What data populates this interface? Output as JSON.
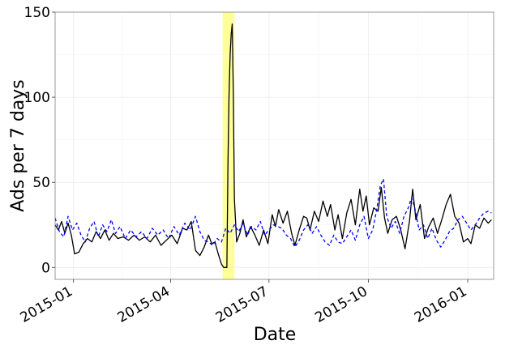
{
  "chart_data": {
    "type": "line",
    "xlabel": "Date",
    "ylabel": "Ads per 7 days",
    "x_range": [
      "2014-12-15",
      "2016-01-25"
    ],
    "ylim": [
      -7,
      150
    ],
    "x_ticks": [
      "2015-01",
      "2015-04",
      "2015-07",
      "2015-10",
      "2016-01"
    ],
    "x_tick_dates": [
      "2015-01-01",
      "2015-04-01",
      "2015-07-01",
      "2015-10-01",
      "2016-01-01"
    ],
    "y_ticks": [
      "0",
      "50",
      "100",
      "150"
    ],
    "y_tick_values": [
      0,
      50,
      100,
      150
    ],
    "grid": true,
    "highlight": {
      "start": "2015-05-19",
      "end": "2015-05-30",
      "color": "#ffff99"
    },
    "series": [
      {
        "style": "solid",
        "color": "#000000",
        "points": [
          [
            "2014-12-15",
            25
          ],
          [
            "2014-12-18",
            22
          ],
          [
            "2014-12-21",
            27
          ],
          [
            "2014-12-24",
            20
          ],
          [
            "2014-12-27",
            26
          ],
          [
            "2014-12-30",
            19
          ],
          [
            "2015-01-02",
            8
          ],
          [
            "2015-01-06",
            9
          ],
          [
            "2015-01-10",
            14
          ],
          [
            "2015-01-14",
            17
          ],
          [
            "2015-01-18",
            15
          ],
          [
            "2015-01-22",
            21
          ],
          [
            "2015-01-26",
            17
          ],
          [
            "2015-01-30",
            22
          ],
          [
            "2015-02-03",
            16
          ],
          [
            "2015-02-07",
            20
          ],
          [
            "2015-02-11",
            17
          ],
          [
            "2015-02-16",
            18
          ],
          [
            "2015-02-21",
            16
          ],
          [
            "2015-02-26",
            19
          ],
          [
            "2015-03-03",
            16
          ],
          [
            "2015-03-08",
            18
          ],
          [
            "2015-03-13",
            15
          ],
          [
            "2015-03-18",
            19
          ],
          [
            "2015-03-23",
            13
          ],
          [
            "2015-03-28",
            16
          ],
          [
            "2015-04-02",
            19
          ],
          [
            "2015-04-07",
            14
          ],
          [
            "2015-04-12",
            23
          ],
          [
            "2015-04-16",
            22
          ],
          [
            "2015-04-20",
            27
          ],
          [
            "2015-04-24",
            10
          ],
          [
            "2015-04-28",
            7
          ],
          [
            "2015-05-02",
            12
          ],
          [
            "2015-05-06",
            19
          ],
          [
            "2015-05-09",
            14
          ],
          [
            "2015-05-12",
            15
          ],
          [
            "2015-05-15",
            8
          ],
          [
            "2015-05-18",
            2
          ],
          [
            "2015-05-20",
            0
          ],
          [
            "2015-05-23",
            0
          ],
          [
            "2015-05-24",
            60
          ],
          [
            "2015-05-25",
            100
          ],
          [
            "2015-05-26",
            125
          ],
          [
            "2015-05-27",
            137
          ],
          [
            "2015-05-28",
            143
          ],
          [
            "2015-05-29",
            100
          ],
          [
            "2015-05-30",
            40
          ],
          [
            "2015-06-01",
            15
          ],
          [
            "2015-06-04",
            20
          ],
          [
            "2015-06-07",
            28
          ],
          [
            "2015-06-10",
            18
          ],
          [
            "2015-06-14",
            24
          ],
          [
            "2015-06-18",
            19
          ],
          [
            "2015-06-22",
            13
          ],
          [
            "2015-06-26",
            22
          ],
          [
            "2015-06-30",
            14
          ],
          [
            "2015-07-04",
            31
          ],
          [
            "2015-07-07",
            24
          ],
          [
            "2015-07-10",
            34
          ],
          [
            "2015-07-14",
            26
          ],
          [
            "2015-07-18",
            33
          ],
          [
            "2015-07-22",
            20
          ],
          [
            "2015-07-25",
            13
          ],
          [
            "2015-07-29",
            22
          ],
          [
            "2015-08-02",
            30
          ],
          [
            "2015-08-05",
            29
          ],
          [
            "2015-08-08",
            22
          ],
          [
            "2015-08-12",
            33
          ],
          [
            "2015-08-16",
            27
          ],
          [
            "2015-08-20",
            39
          ],
          [
            "2015-08-24",
            30
          ],
          [
            "2015-08-27",
            37
          ],
          [
            "2015-08-31",
            22
          ],
          [
            "2015-09-03",
            31
          ],
          [
            "2015-09-07",
            17
          ],
          [
            "2015-09-11",
            32
          ],
          [
            "2015-09-15",
            40
          ],
          [
            "2015-09-19",
            25
          ],
          [
            "2015-09-23",
            46
          ],
          [
            "2015-09-26",
            33
          ],
          [
            "2015-09-29",
            42
          ],
          [
            "2015-10-02",
            25
          ],
          [
            "2015-10-06",
            35
          ],
          [
            "2015-10-10",
            33
          ],
          [
            "2015-10-13",
            47
          ],
          [
            "2015-10-16",
            29
          ],
          [
            "2015-10-19",
            20
          ],
          [
            "2015-10-23",
            28
          ],
          [
            "2015-10-27",
            30
          ],
          [
            "2015-10-31",
            22
          ],
          [
            "2015-11-04",
            11
          ],
          [
            "2015-11-08",
            27
          ],
          [
            "2015-11-11",
            46
          ],
          [
            "2015-11-14",
            28
          ],
          [
            "2015-11-18",
            37
          ],
          [
            "2015-11-22",
            17
          ],
          [
            "2015-11-26",
            24
          ],
          [
            "2015-11-30",
            29
          ],
          [
            "2015-12-04",
            20
          ],
          [
            "2015-12-08",
            28
          ],
          [
            "2015-12-12",
            37
          ],
          [
            "2015-12-16",
            43
          ],
          [
            "2015-12-20",
            30
          ],
          [
            "2015-12-24",
            26
          ],
          [
            "2015-12-28",
            15
          ],
          [
            "2016-01-01",
            17
          ],
          [
            "2016-01-04",
            14
          ],
          [
            "2016-01-08",
            25
          ],
          [
            "2016-01-12",
            23
          ],
          [
            "2016-01-16",
            29
          ],
          [
            "2016-01-20",
            26
          ],
          [
            "2016-01-23",
            28
          ]
        ]
      },
      {
        "style": "dashed",
        "color": "#0000ff",
        "points": [
          [
            "2014-12-15",
            29
          ],
          [
            "2014-12-19",
            21
          ],
          [
            "2014-12-23",
            18
          ],
          [
            "2014-12-27",
            30
          ],
          [
            "2014-12-31",
            22
          ],
          [
            "2015-01-04",
            26
          ],
          [
            "2015-01-08",
            19
          ],
          [
            "2015-01-12",
            15
          ],
          [
            "2015-01-16",
            23
          ],
          [
            "2015-01-20",
            27
          ],
          [
            "2015-01-24",
            18
          ],
          [
            "2015-01-28",
            25
          ],
          [
            "2015-02-01",
            21
          ],
          [
            "2015-02-05",
            28
          ],
          [
            "2015-02-09",
            20
          ],
          [
            "2015-02-13",
            24
          ],
          [
            "2015-02-18",
            17
          ],
          [
            "2015-02-23",
            22
          ],
          [
            "2015-02-28",
            18
          ],
          [
            "2015-03-05",
            21
          ],
          [
            "2015-03-10",
            17
          ],
          [
            "2015-03-15",
            23
          ],
          [
            "2015-03-20",
            19
          ],
          [
            "2015-03-25",
            22
          ],
          [
            "2015-03-30",
            17
          ],
          [
            "2015-04-04",
            24
          ],
          [
            "2015-04-09",
            19
          ],
          [
            "2015-04-14",
            26
          ],
          [
            "2015-04-19",
            22
          ],
          [
            "2015-04-24",
            30
          ],
          [
            "2015-04-28",
            21
          ],
          [
            "2015-05-02",
            16
          ],
          [
            "2015-05-06",
            15
          ],
          [
            "2015-05-10",
            13
          ],
          [
            "2015-05-14",
            17
          ],
          [
            "2015-05-18",
            15
          ],
          [
            "2015-05-22",
            23
          ],
          [
            "2015-05-26",
            20
          ],
          [
            "2015-05-30",
            25
          ],
          [
            "2015-06-03",
            21
          ],
          [
            "2015-06-07",
            26
          ],
          [
            "2015-06-11",
            19
          ],
          [
            "2015-06-15",
            24
          ],
          [
            "2015-06-19",
            22
          ],
          [
            "2015-06-23",
            27
          ],
          [
            "2015-06-27",
            19
          ],
          [
            "2015-07-01",
            22
          ],
          [
            "2015-07-05",
            25
          ],
          [
            "2015-07-09",
            24
          ],
          [
            "2015-07-13",
            23
          ],
          [
            "2015-07-17",
            19
          ],
          [
            "2015-07-21",
            17
          ],
          [
            "2015-07-25",
            12
          ],
          [
            "2015-07-29",
            16
          ],
          [
            "2015-08-02",
            22
          ],
          [
            "2015-08-06",
            25
          ],
          [
            "2015-08-10",
            20
          ],
          [
            "2015-08-14",
            24
          ],
          [
            "2015-08-18",
            19
          ],
          [
            "2015-08-22",
            15
          ],
          [
            "2015-08-26",
            13
          ],
          [
            "2015-08-30",
            19
          ],
          [
            "2015-09-03",
            15
          ],
          [
            "2015-09-07",
            14
          ],
          [
            "2015-09-11",
            18
          ],
          [
            "2015-09-15",
            22
          ],
          [
            "2015-09-19",
            16
          ],
          [
            "2015-09-23",
            25
          ],
          [
            "2015-09-27",
            30
          ],
          [
            "2015-10-01",
            17
          ],
          [
            "2015-10-05",
            22
          ],
          [
            "2015-10-09",
            35
          ],
          [
            "2015-10-12",
            48
          ],
          [
            "2015-10-15",
            52
          ],
          [
            "2015-10-18",
            30
          ],
          [
            "2015-10-22",
            23
          ],
          [
            "2015-10-26",
            27
          ],
          [
            "2015-10-30",
            20
          ],
          [
            "2015-11-03",
            30
          ],
          [
            "2015-11-07",
            35
          ],
          [
            "2015-11-10",
            41
          ],
          [
            "2015-11-13",
            35
          ],
          [
            "2015-11-17",
            22
          ],
          [
            "2015-11-21",
            25
          ],
          [
            "2015-11-25",
            17
          ],
          [
            "2015-11-29",
            23
          ],
          [
            "2015-12-03",
            16
          ],
          [
            "2015-12-07",
            12
          ],
          [
            "2015-12-11",
            16
          ],
          [
            "2015-12-15",
            21
          ],
          [
            "2015-12-19",
            23
          ],
          [
            "2015-12-23",
            28
          ],
          [
            "2015-12-27",
            30
          ],
          [
            "2015-12-31",
            26
          ],
          [
            "2016-01-04",
            22
          ],
          [
            "2016-01-08",
            25
          ],
          [
            "2016-01-12",
            29
          ],
          [
            "2016-01-16",
            32
          ],
          [
            "2016-01-20",
            33
          ],
          [
            "2016-01-23",
            32
          ]
        ]
      }
    ]
  }
}
